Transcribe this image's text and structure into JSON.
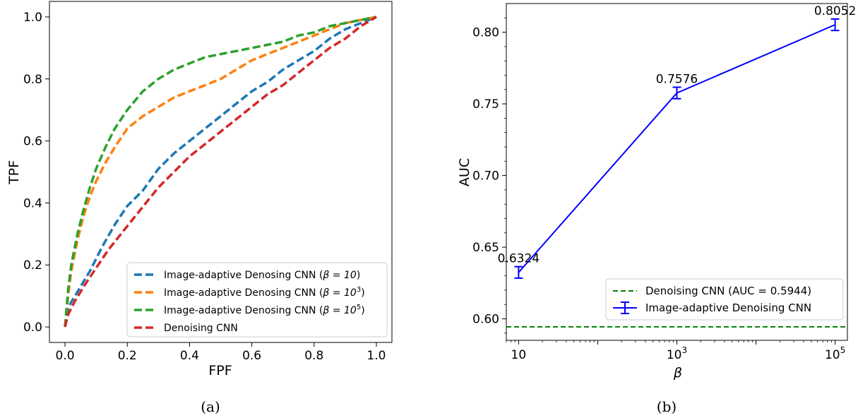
{
  "chart_data": [
    {
      "type": "line",
      "caption": "(a)",
      "xlabel": "FPF",
      "ylabel": "TPF",
      "xlim": [
        -0.05,
        1.05
      ],
      "ylim": [
        -0.05,
        1.05
      ],
      "xticks": [
        "0.0",
        "0.2",
        "0.4",
        "0.6",
        "0.8",
        "1.0"
      ],
      "yticks": [
        "0.0",
        "0.2",
        "0.4",
        "0.6",
        "0.8",
        "1.0"
      ],
      "legend_position": "lower-right",
      "series": [
        {
          "name": "Image-adaptive Denosing CNN (β = 10)",
          "label_main": "Image-adaptive Denosing CNN (",
          "label_beta": "β = 10",
          "label_sup": "",
          "color": "#1f77b4",
          "x": [
            0.0,
            0.01,
            0.02,
            0.05,
            0.08,
            0.12,
            0.16,
            0.2,
            0.25,
            0.3,
            0.35,
            0.4,
            0.45,
            0.5,
            0.55,
            0.6,
            0.65,
            0.7,
            0.75,
            0.8,
            0.85,
            0.9,
            0.95,
            1.0
          ],
          "y": [
            0.0,
            0.06,
            0.08,
            0.13,
            0.18,
            0.26,
            0.33,
            0.39,
            0.44,
            0.51,
            0.56,
            0.6,
            0.64,
            0.68,
            0.72,
            0.76,
            0.79,
            0.83,
            0.86,
            0.89,
            0.93,
            0.96,
            0.98,
            1.0
          ]
        },
        {
          "name": "Image-adaptive Denosing CNN (β = 10^3)",
          "label_main": "Image-adaptive Denosing CNN (",
          "label_beta": "β = 10",
          "label_sup": "3",
          "color": "#ff7f0e",
          "x": [
            0.0,
            0.01,
            0.02,
            0.04,
            0.06,
            0.08,
            0.1,
            0.13,
            0.16,
            0.2,
            0.25,
            0.3,
            0.35,
            0.4,
            0.45,
            0.5,
            0.55,
            0.6,
            0.65,
            0.7,
            0.75,
            0.8,
            0.85,
            0.9,
            0.95,
            1.0
          ],
          "y": [
            0.0,
            0.1,
            0.18,
            0.28,
            0.36,
            0.42,
            0.47,
            0.53,
            0.58,
            0.64,
            0.68,
            0.71,
            0.74,
            0.76,
            0.78,
            0.8,
            0.83,
            0.86,
            0.88,
            0.9,
            0.92,
            0.94,
            0.96,
            0.98,
            0.99,
            1.0
          ]
        },
        {
          "name": "Image-adaptive Denosing CNN (β = 10^5)",
          "label_main": "Image-adaptive Denosing CNN (",
          "label_beta": "β = 10",
          "label_sup": "5",
          "color": "#2ca02c",
          "x": [
            0.0,
            0.01,
            0.02,
            0.04,
            0.06,
            0.08,
            0.1,
            0.13,
            0.16,
            0.2,
            0.25,
            0.3,
            0.35,
            0.4,
            0.45,
            0.5,
            0.55,
            0.6,
            0.65,
            0.7,
            0.75,
            0.8,
            0.85,
            0.9,
            0.95,
            1.0
          ],
          "y": [
            0.0,
            0.12,
            0.2,
            0.3,
            0.38,
            0.45,
            0.51,
            0.58,
            0.64,
            0.7,
            0.76,
            0.8,
            0.83,
            0.85,
            0.87,
            0.88,
            0.89,
            0.9,
            0.91,
            0.92,
            0.94,
            0.95,
            0.97,
            0.98,
            0.99,
            1.0
          ]
        },
        {
          "name": "Denoising CNN",
          "label_main": "Denoising CNN",
          "label_beta": "",
          "label_sup": "",
          "color": "#d62728",
          "x": [
            0.0,
            0.01,
            0.03,
            0.06,
            0.1,
            0.14,
            0.18,
            0.22,
            0.26,
            0.3,
            0.35,
            0.4,
            0.45,
            0.5,
            0.55,
            0.6,
            0.65,
            0.7,
            0.75,
            0.8,
            0.85,
            0.9,
            0.95,
            1.0
          ],
          "y": [
            0.0,
            0.04,
            0.08,
            0.13,
            0.19,
            0.25,
            0.3,
            0.35,
            0.4,
            0.45,
            0.5,
            0.55,
            0.59,
            0.63,
            0.67,
            0.71,
            0.75,
            0.78,
            0.82,
            0.86,
            0.9,
            0.93,
            0.97,
            1.0
          ]
        }
      ]
    },
    {
      "type": "line",
      "caption": "(b)",
      "xlabel": "β",
      "ylabel": "AUC",
      "xscale": "log",
      "xlim": [
        7,
        143000
      ],
      "ylim": [
        0.585,
        0.82
      ],
      "yticks": [
        "0.60",
        "0.65",
        "0.70",
        "0.75",
        "0.80"
      ],
      "xticks": [
        {
          "value": 10,
          "base": "10",
          "sup": ""
        },
        {
          "value": 1000,
          "base": "10",
          "sup": "3"
        },
        {
          "value": 100000,
          "base": "10",
          "sup": "5"
        }
      ],
      "legend_position": "lower-right",
      "series": [
        {
          "name": "Image-adaptive Denoising CNN",
          "color": "#0000ff",
          "x": [
            10,
            1000,
            100000
          ],
          "y": [
            0.6324,
            0.7576,
            0.8052
          ],
          "err": [
            0.004,
            0.004,
            0.004
          ],
          "labels": [
            "0.6324",
            "0.7576",
            "0.8052"
          ]
        }
      ],
      "reference_line": {
        "name": "Denoising CNN (AUC = 0.5944)",
        "value": 0.5944,
        "color": "#008000"
      }
    }
  ]
}
